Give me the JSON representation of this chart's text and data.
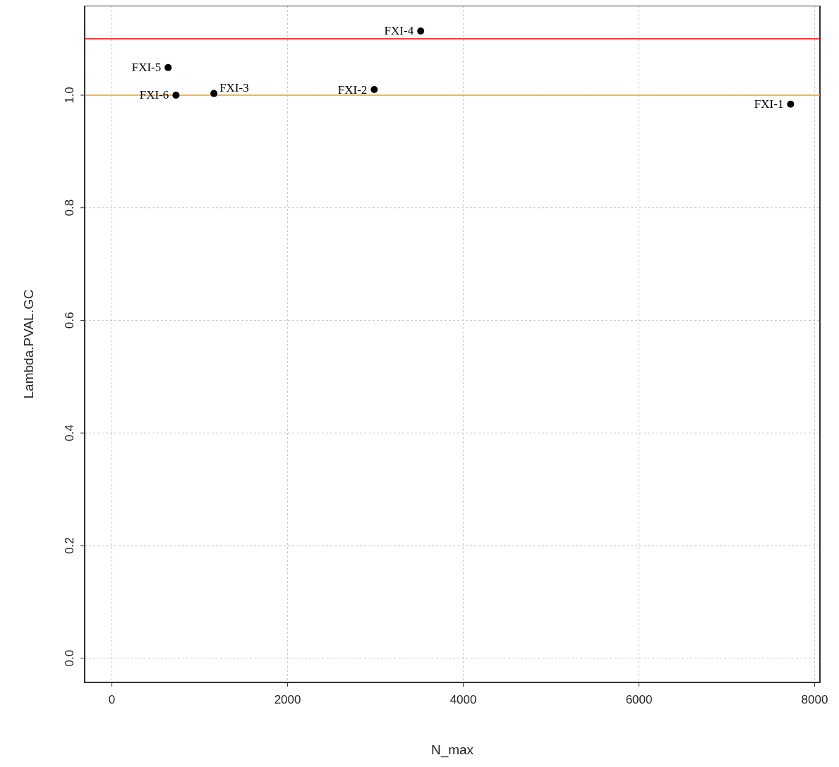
{
  "chart_data": {
    "type": "scatter",
    "xlabel": "N_max",
    "ylabel": "Lambda.PVAL.GC",
    "x": [
      7726,
      2986,
      1161,
      3515,
      640,
      729
    ],
    "series": [
      {
        "color": "#000000",
        "values": [
          0.984,
          1.01,
          1.003,
          1.114,
          1.049,
          1.0
        ]
      }
    ],
    "xlim": [
      -310,
      8060
    ],
    "xticks": [
      0,
      2000,
      4000,
      6000,
      8000
    ],
    "ylim": [
      -0.043,
      1.159
    ],
    "yticks": [
      {
        "value": 0,
        "label": "0.0"
      },
      0.2,
      0.4,
      0.6,
      0.8,
      {
        "value": 1,
        "label": "1.0"
      }
    ],
    "grid": true,
    "marker": "circle",
    "ref_lines": [
      {
        "axis": "y",
        "value": 1.1,
        "color": "#ff0000"
      },
      {
        "axis": "y",
        "value": 1.0,
        "color": "#ffa500"
      }
    ],
    "annotations": [
      {
        "text": "FXI-1",
        "x": 7726,
        "y": 0.984
      },
      {
        "text": "FXI-2",
        "x": 2986,
        "y": 1.01
      },
      {
        "text": "FXI-3",
        "x": 1161,
        "y": 1.003
      },
      {
        "text": "FXI-4",
        "x": 3515,
        "y": 1.114
      },
      {
        "text": "FXI-5",
        "x": 640,
        "y": 1.049
      },
      {
        "text": "FXI-6",
        "x": 729,
        "y": 1.0
      }
    ]
  }
}
